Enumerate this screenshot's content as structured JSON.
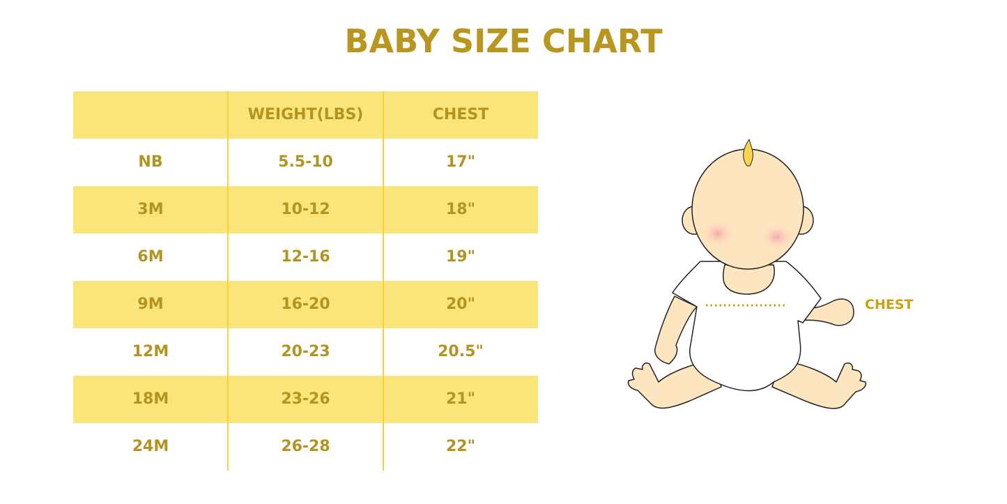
{
  "title": "BABY SIZE CHART",
  "table": {
    "headers": [
      "",
      "WEIGHT(LBS)",
      "CHEST"
    ],
    "rows": [
      [
        "NB",
        "5.5-10",
        "17\""
      ],
      [
        "3M",
        "10-12",
        "18\""
      ],
      [
        "6M",
        "12-16",
        "19\""
      ],
      [
        "9M",
        "16-20",
        "20\""
      ],
      [
        "12M",
        "20-23",
        "20.5\""
      ],
      [
        "18M",
        "23-26",
        "21\""
      ],
      [
        "24M",
        "26-28",
        "22\""
      ]
    ]
  },
  "illustration": {
    "chest_label": "CHEST"
  },
  "colors": {
    "text": "#b39421",
    "row_highlight": "#fae57b",
    "divider": "#f7d23a",
    "skin": "#fde5bf"
  }
}
